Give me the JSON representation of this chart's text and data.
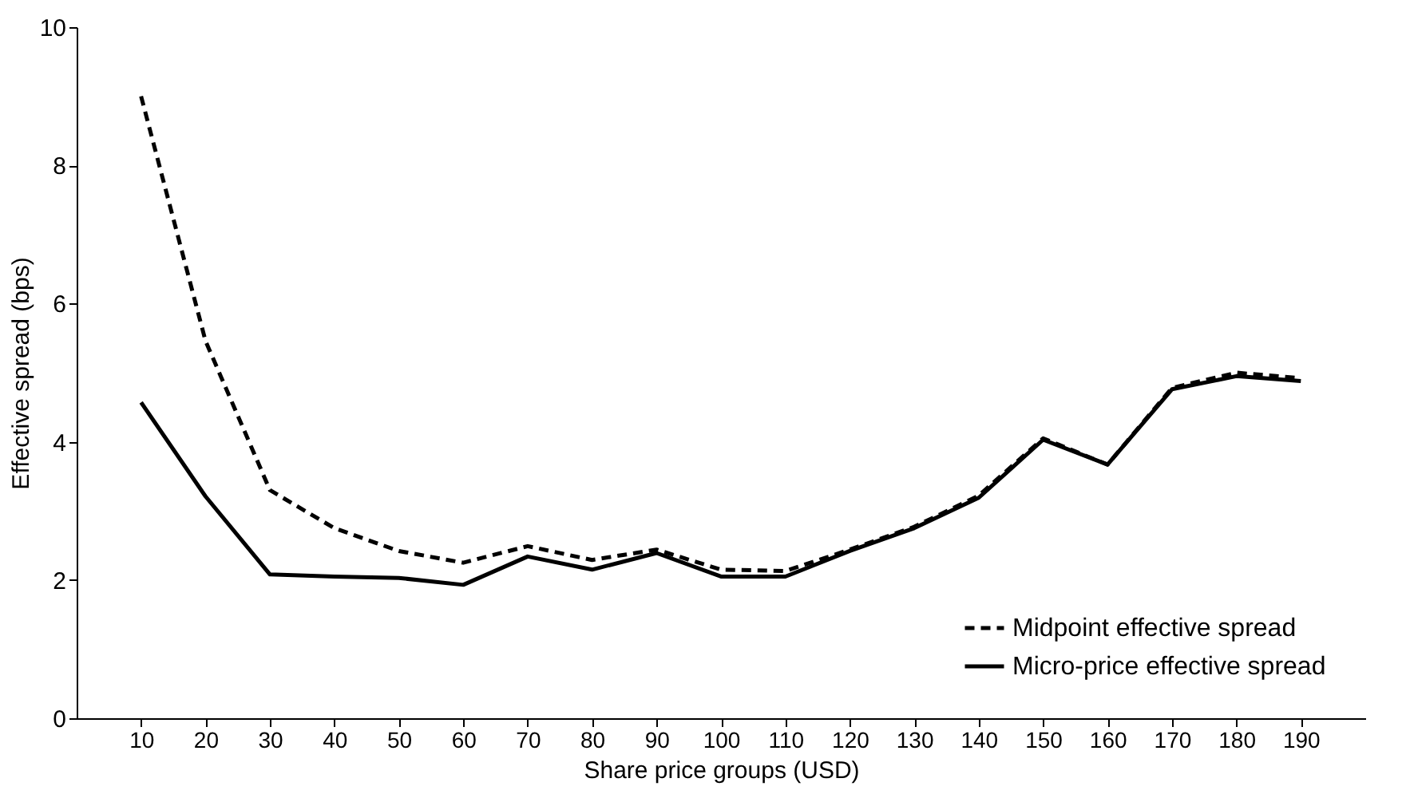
{
  "chart_data": {
    "type": "line",
    "xlabel": "Share price groups (USD)",
    "ylabel": "Effective spread (bps)",
    "categories": [
      "10",
      "20",
      "30",
      "40",
      "50",
      "60",
      "70",
      "80",
      "90",
      "100",
      "110",
      "120",
      "130",
      "140",
      "150",
      "160",
      "170",
      "180",
      "190"
    ],
    "series": [
      {
        "name": "Midpoint effective spread",
        "color": "#000000",
        "line_style": "dashed",
        "values": [
          9.0,
          5.46,
          3.3,
          2.75,
          2.42,
          2.25,
          2.49,
          2.29,
          2.44,
          2.15,
          2.13,
          2.44,
          2.77,
          3.22,
          4.05,
          3.67,
          4.78,
          5.0,
          4.92
        ]
      },
      {
        "name": "Micro-price effective spread",
        "color": "#000000",
        "line_style": "solid",
        "values": [
          4.57,
          3.21,
          2.08,
          2.05,
          2.03,
          1.93,
          2.34,
          2.15,
          2.39,
          2.05,
          2.05,
          2.42,
          2.75,
          3.19,
          4.03,
          3.67,
          4.76,
          4.95,
          4.88
        ]
      }
    ],
    "ylim": [
      0,
      10
    ],
    "yticks": [
      0,
      2,
      4,
      6,
      8,
      10
    ],
    "grid": false,
    "legend": "bottom right",
    "marker": "none"
  }
}
